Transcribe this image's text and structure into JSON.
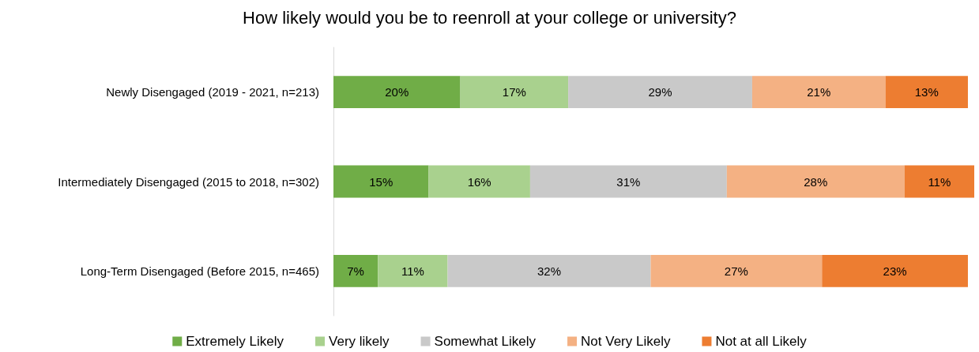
{
  "chart_data": {
    "type": "bar",
    "orientation": "horizontal",
    "stacked": true,
    "title": "How likely would you be to reenroll at your college or university?",
    "categories": [
      "Newly Disengaged (2019 - 2021, n=213)",
      "Intermediately Disengaged (2015 to 2018, n=302)",
      "Long-Term Disengaged (Before 2015, n=465)"
    ],
    "series": [
      {
        "name": "Extremely Likely",
        "color": "#70ad47",
        "values": [
          20,
          15,
          7
        ],
        "value_labels": [
          "20%",
          "15%",
          "7%"
        ]
      },
      {
        "name": "Very likely",
        "color": "#a9d18e",
        "values": [
          17,
          16,
          11
        ],
        "value_labels": [
          "17%",
          "16%",
          "11%"
        ]
      },
      {
        "name": "Somewhat Likely",
        "color": "#c9c9c9",
        "values": [
          29,
          31,
          32
        ],
        "value_labels": [
          "29%",
          "31%",
          "32%"
        ]
      },
      {
        "name": "Not Very Likely",
        "color": "#f4b183",
        "values": [
          21,
          28,
          27
        ],
        "value_labels": [
          "21%",
          "28%",
          "27%"
        ]
      },
      {
        "name": "Not at all Likely",
        "color": "#ed7d31",
        "values": [
          13,
          11,
          23
        ],
        "value_labels": [
          "13%",
          "11%",
          "23%"
        ]
      }
    ],
    "legend": "bottom"
  }
}
